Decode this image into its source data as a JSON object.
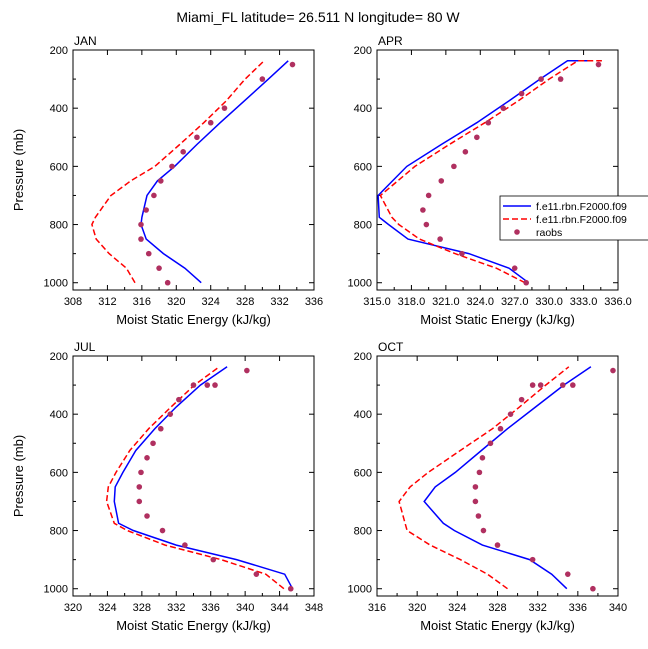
{
  "figure": {
    "title": "Miami_FL  latitude= 26.511 N longitude= 80 W"
  },
  "legend": {
    "entries": [
      {
        "label": "f.e11.rbn.F2000.f09",
        "color": "#0000ff",
        "style": "solid"
      },
      {
        "label": "f.e11.rbn.F2000.f09",
        "color": "#ff0000",
        "style": "dashed"
      },
      {
        "label": "raobs",
        "color": "#b03060",
        "style": "dot"
      }
    ]
  },
  "chart_data": [
    {
      "type": "line",
      "panel_label": "JAN",
      "xlabel": "Moist Static Energy (kJ/kg)",
      "ylabel": "Pressure (mb)",
      "xlim": [
        308,
        336
      ],
      "ylim": [
        1025,
        200
      ],
      "y_reversed": true,
      "xticks": [
        "308",
        "312",
        "316",
        "320",
        "324",
        "328",
        "332",
        "336"
      ],
      "yticks": [
        "200",
        "400",
        "600",
        "800",
        "1000"
      ],
      "series": [
        {
          "style": "solid",
          "color": "#0000ff",
          "x": [
            322.9,
            321.0,
            318.5,
            316.5,
            315.9,
            316.0,
            316.6,
            317.8,
            319.8,
            322.4,
            325.1,
            327.9,
            330.7,
            333.0
          ],
          "y": [
            1000,
            950,
            900,
            850,
            800,
            775,
            700,
            650,
            600,
            525,
            450,
            375,
            300,
            237
          ]
        },
        {
          "style": "dashed",
          "color": "#ff0000",
          "x": [
            315.2,
            314.2,
            312.2,
            310.7,
            310.2,
            310.6,
            312.4,
            314.7,
            317.5,
            320.4,
            323.2,
            325.8,
            328.0,
            330.2
          ],
          "y": [
            1000,
            950,
            900,
            850,
            800,
            775,
            700,
            650,
            600,
            525,
            450,
            375,
            300,
            237
          ]
        },
        {
          "style": "markers",
          "color": "#b03060",
          "x": [
            319.0,
            318.0,
            316.8,
            315.9,
            315.9,
            316.5,
            317.4,
            318.2,
            319.5,
            320.8,
            322.4,
            324.0,
            325.6,
            330.0,
            333.5
          ],
          "y": [
            1000,
            950,
            900,
            850,
            800,
            750,
            700,
            650,
            600,
            550,
            500,
            450,
            400,
            300,
            250
          ]
        }
      ]
    },
    {
      "type": "line",
      "panel_label": "APR",
      "xlabel": "Moist Static Energy (kJ/kg)",
      "ylabel": "",
      "xlim": [
        315,
        336
      ],
      "ylim": [
        1025,
        200
      ],
      "y_reversed": true,
      "xticks": [
        "315.0",
        "318.0",
        "321.0",
        "324.0",
        "327.0",
        "330.0",
        "333.0",
        "336.0"
      ],
      "yticks": [
        "200",
        "400",
        "600",
        "800",
        "1000"
      ],
      "series": [
        {
          "style": "solid",
          "color": "#0000ff",
          "x": [
            328.2,
            326.5,
            323.0,
            317.7,
            316.0,
            315.2,
            315.1,
            317.6,
            320.6,
            323.7,
            326.5,
            329.2,
            331.6,
            333.8
          ],
          "y": [
            1000,
            950,
            900,
            850,
            800,
            775,
            700,
            600,
            525,
            450,
            375,
            300,
            237,
            237
          ]
        },
        {
          "style": "dashed",
          "color": "#ff0000",
          "x": [
            327.9,
            325.4,
            321.8,
            318.7,
            316.9,
            316.3,
            315.3,
            318.3,
            321.3,
            324.4,
            327.3,
            330.0,
            332.5,
            334.6
          ],
          "y": [
            1000,
            950,
            900,
            850,
            800,
            775,
            700,
            600,
            525,
            450,
            375,
            300,
            237,
            237
          ]
        },
        {
          "style": "markers",
          "color": "#b03060",
          "x": [
            328.0,
            327.0,
            322.4,
            320.5,
            319.3,
            319.0,
            319.5,
            320.6,
            321.7,
            322.7,
            323.7,
            324.7,
            326.0,
            327.6,
            329.3,
            331.0,
            334.3
          ],
          "y": [
            1000,
            950,
            900,
            850,
            800,
            750,
            700,
            650,
            600,
            550,
            500,
            450,
            400,
            350,
            300,
            300,
            250
          ]
        }
      ]
    },
    {
      "type": "line",
      "panel_label": "JUL",
      "xlabel": "Moist Static Energy (kJ/kg)",
      "ylabel": "Pressure (mb)",
      "xlim": [
        320,
        348
      ],
      "ylim": [
        1025,
        200
      ],
      "y_reversed": true,
      "xticks": [
        "320",
        "324",
        "328",
        "332",
        "336",
        "340",
        "344",
        "348"
      ],
      "yticks": [
        "200",
        "400",
        "600",
        "800",
        "1000"
      ],
      "series": [
        {
          "style": "solid",
          "color": "#0000ff",
          "x": [
            345.5,
            344.6,
            339.0,
            332.0,
            327.0,
            325.3,
            324.8,
            324.9,
            325.8,
            327.3,
            329.5,
            332.0,
            334.8,
            337.9
          ],
          "y": [
            1000,
            950,
            900,
            850,
            800,
            775,
            700,
            650,
            600,
            525,
            450,
            375,
            300,
            237
          ]
        },
        {
          "style": "dashed",
          "color": "#ff0000",
          "x": [
            344.5,
            342.4,
            337.2,
            330.7,
            326.3,
            324.8,
            323.9,
            324.1,
            325.0,
            326.6,
            328.8,
            331.4,
            334.1,
            337.0
          ],
          "y": [
            1000,
            950,
            900,
            850,
            800,
            775,
            700,
            650,
            600,
            525,
            450,
            375,
            300,
            237
          ]
        },
        {
          "style": "markers",
          "color": "#b03060",
          "x": [
            345.3,
            341.3,
            336.3,
            333.0,
            330.4,
            328.6,
            327.7,
            327.7,
            327.9,
            328.6,
            329.3,
            330.2,
            331.3,
            332.3,
            334.0,
            335.6,
            336.5,
            340.2
          ],
          "y": [
            1000,
            950,
            900,
            850,
            800,
            750,
            700,
            650,
            600,
            550,
            500,
            450,
            400,
            350,
            300,
            300,
            300,
            250
          ]
        }
      ]
    },
    {
      "type": "line",
      "panel_label": "OCT",
      "xlabel": "Moist Static Energy (kJ/kg)",
      "ylabel": "",
      "xlim": [
        316,
        340
      ],
      "ylim": [
        1025,
        200
      ],
      "y_reversed": true,
      "xticks": [
        "316",
        "320",
        "324",
        "328",
        "332",
        "336",
        "340"
      ],
      "yticks": [
        "200",
        "400",
        "600",
        "800",
        "1000"
      ],
      "series": [
        {
          "style": "solid",
          "color": "#0000ff",
          "x": [
            334.9,
            333.4,
            331.2,
            326.5,
            323.7,
            322.6,
            320.7,
            321.8,
            323.8,
            326.4,
            329.0,
            331.8,
            334.6,
            337.3
          ],
          "y": [
            1000,
            950,
            900,
            850,
            800,
            775,
            700,
            650,
            600,
            525,
            450,
            375,
            300,
            237
          ]
        },
        {
          "style": "dashed",
          "color": "#ff0000",
          "x": [
            329.0,
            327.0,
            324.3,
            321.3,
            319.0,
            318.8,
            318.2,
            319.3,
            321.1,
            324.3,
            327.5,
            330.2,
            332.8,
            335.1
          ],
          "y": [
            1000,
            950,
            900,
            850,
            800,
            775,
            700,
            650,
            600,
            525,
            450,
            375,
            300,
            237
          ]
        },
        {
          "style": "markers",
          "color": "#b03060",
          "x": [
            337.5,
            335.0,
            331.5,
            328.0,
            326.6,
            326.1,
            325.8,
            325.8,
            326.2,
            326.5,
            327.3,
            328.3,
            329.3,
            330.4,
            331.5,
            332.3,
            334.5,
            335.5,
            339.5
          ],
          "y": [
            1000,
            950,
            900,
            850,
            800,
            750,
            700,
            650,
            600,
            550,
            500,
            450,
            400,
            350,
            300,
            300,
            300,
            300,
            250
          ]
        }
      ]
    }
  ]
}
